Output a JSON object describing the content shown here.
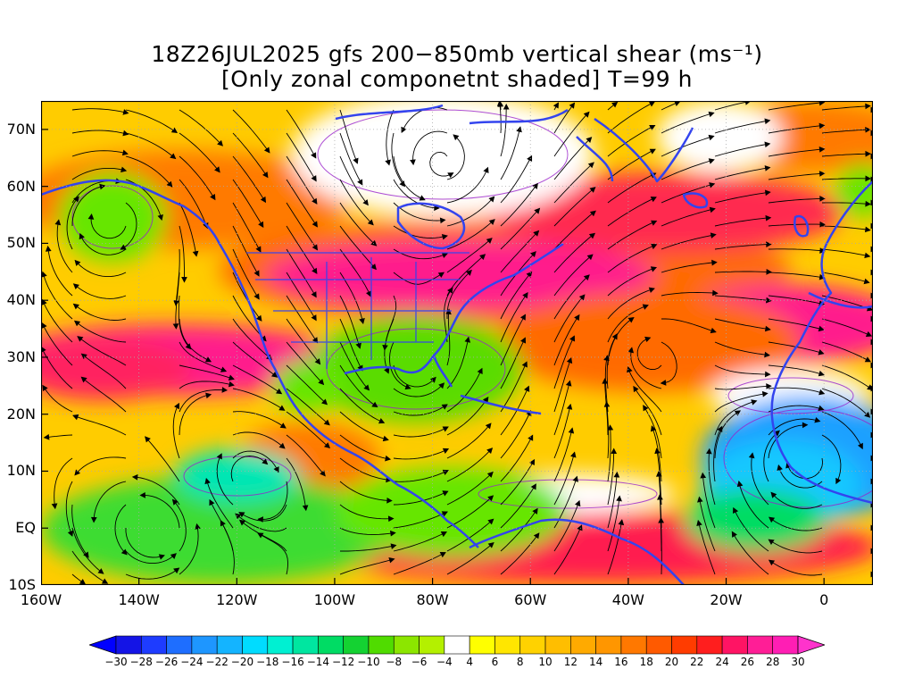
{
  "title": {
    "line1": "18Z26JUL2025 gfs 200−850mb vertical shear (ms⁻¹)",
    "line2": "[Only zonal componetnt shaded] T=99 h"
  },
  "map": {
    "lat_labels": [
      "70N",
      "60N",
      "50N",
      "40N",
      "30N",
      "20N",
      "10N",
      "EQ",
      "10S"
    ],
    "lat_values": [
      70,
      60,
      50,
      40,
      30,
      20,
      10,
      0,
      -10
    ],
    "lon_labels": [
      "160W",
      "140W",
      "120W",
      "100W",
      "80W",
      "60W",
      "40W",
      "20W",
      "0"
    ],
    "lon_values": [
      -160,
      -140,
      -120,
      -100,
      -80,
      -60,
      -40,
      -20,
      0
    ],
    "lat_range": [
      -10,
      75
    ],
    "lon_range": [
      -160,
      10
    ],
    "coast_color": "#3344ee",
    "contour_color": "#9922cc",
    "streamline_color": "#000000"
  },
  "colorbar": {
    "labels": [
      "-30",
      "-28",
      "-26",
      "-24",
      "-22",
      "-20",
      "-18",
      "-16",
      "-14",
      "-12",
      "-10",
      "-8",
      "-6",
      "-4",
      "4",
      "6",
      "8",
      "10",
      "12",
      "14",
      "16",
      "18",
      "20",
      "22",
      "24",
      "26",
      "28",
      "30"
    ],
    "colors": [
      "#1414e6",
      "#1e3cff",
      "#1e6eff",
      "#1e96ff",
      "#14b4ff",
      "#00dcff",
      "#00f0d2",
      "#00e6a0",
      "#00dc64",
      "#14d232",
      "#50dc00",
      "#8ce600",
      "#b4f000",
      "#ffffff",
      "#ffff00",
      "#ffe600",
      "#ffd200",
      "#ffbe00",
      "#ffaa00",
      "#ff9600",
      "#ff7800",
      "#ff5a00",
      "#ff3c00",
      "#ff1e1e",
      "#ff1464",
      "#ff1e96",
      "#ff1eb4"
    ],
    "low_color": "#0000ff",
    "high_color": "#ff33cc"
  }
}
